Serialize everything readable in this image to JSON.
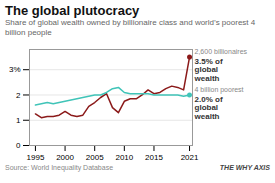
{
  "chart_data": {
    "type": "line",
    "title": "The global plutocracy",
    "subtitle": "Share of global wealth owned by billionaire class and world’s poorest 4 billion people",
    "source": "Source: World Inequality Database",
    "credit": "THE WHY AXIS",
    "x": [
      1995,
      1996,
      1997,
      1998,
      1999,
      2000,
      2001,
      2002,
      2003,
      2004,
      2005,
      2006,
      2007,
      2008,
      2009,
      2010,
      2011,
      2012,
      2013,
      2014,
      2015,
      2016,
      2017,
      2018,
      2019,
      2020,
      2021
    ],
    "series": [
      {
        "name": "2,600 billionaires",
        "color": "#8B1A1A",
        "values": [
          1.25,
          1.1,
          1.15,
          1.15,
          1.2,
          1.35,
          1.2,
          1.15,
          1.2,
          1.55,
          1.7,
          1.9,
          2.05,
          1.5,
          1.3,
          1.75,
          1.85,
          1.85,
          2.0,
          2.2,
          2.05,
          2.1,
          2.25,
          2.35,
          2.3,
          2.2,
          3.5
        ]
      },
      {
        "name": "4 billion poorest",
        "color": "#40C4B8",
        "values": [
          1.6,
          1.65,
          1.7,
          1.65,
          1.7,
          1.75,
          1.8,
          1.85,
          1.9,
          1.95,
          2.0,
          2.0,
          2.1,
          2.25,
          2.3,
          2.1,
          2.05,
          2.05,
          2.05,
          2.05,
          2.0,
          2.0,
          2.0,
          2.0,
          2.0,
          1.95,
          2.0
        ]
      }
    ],
    "annotations": [
      {
        "text": "3.5% of\nglobal\nwealth",
        "x": 2021,
        "y": 3.5
      },
      {
        "text": "2.0% of\nglobal\nwealth",
        "x": 2021,
        "y": 2.0
      }
    ],
    "xlim": [
      1994,
      2021.5
    ],
    "xticks": [
      1995,
      2000,
      2005,
      2010,
      2015,
      2021
    ],
    "ylim": [
      0,
      3.8
    ],
    "yticks": [
      0,
      1,
      2,
      {
        "value": 3,
        "label": "3%"
      }
    ],
    "grid": true
  }
}
